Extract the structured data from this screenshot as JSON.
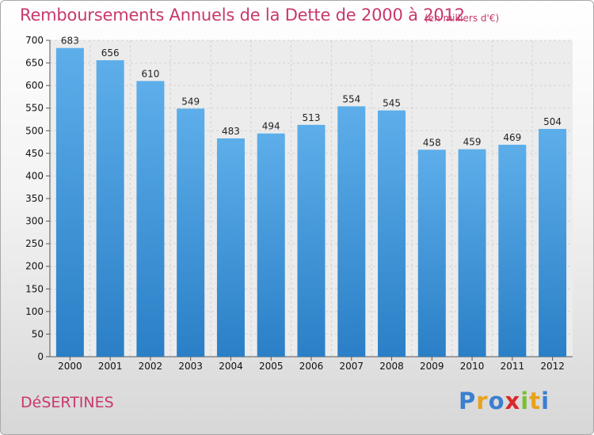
{
  "header": {
    "title": "Remboursements Annuels de la Dette de 2000 à 2012",
    "unit": "(en milliers d'€)"
  },
  "footer": {
    "commune": "DéSERTINES",
    "logo_letters": [
      {
        "char": "P",
        "color": "#3a7fd0"
      },
      {
        "char": "r",
        "color": "#e8a21c"
      },
      {
        "char": "o",
        "color": "#3a7fd0"
      },
      {
        "char": "x",
        "color": "#d9282b"
      },
      {
        "char": "i",
        "color": "#7bbf33"
      },
      {
        "char": "t",
        "color": "#e8a21c"
      },
      {
        "char": "i",
        "color": "#3a7fd0"
      }
    ]
  },
  "colors": {
    "accent_text": "#c8386d",
    "bar_top": "#5daeea",
    "bar_bottom": "#2a7fc6"
  },
  "chart_data": {
    "type": "bar",
    "categories": [
      "2000",
      "2001",
      "2002",
      "2003",
      "2004",
      "2005",
      "2006",
      "2007",
      "2008",
      "2009",
      "2010",
      "2011",
      "2012"
    ],
    "values": [
      683,
      656,
      610,
      549,
      483,
      494,
      513,
      554,
      545,
      458,
      459,
      469,
      504
    ],
    "title": "Remboursements Annuels de la Dette de 2000 à 2012",
    "ylim": [
      0,
      700
    ],
    "yticks": [
      0,
      50,
      100,
      150,
      200,
      250,
      300,
      350,
      400,
      450,
      500,
      550,
      600,
      650,
      700
    ],
    "grid": true
  }
}
